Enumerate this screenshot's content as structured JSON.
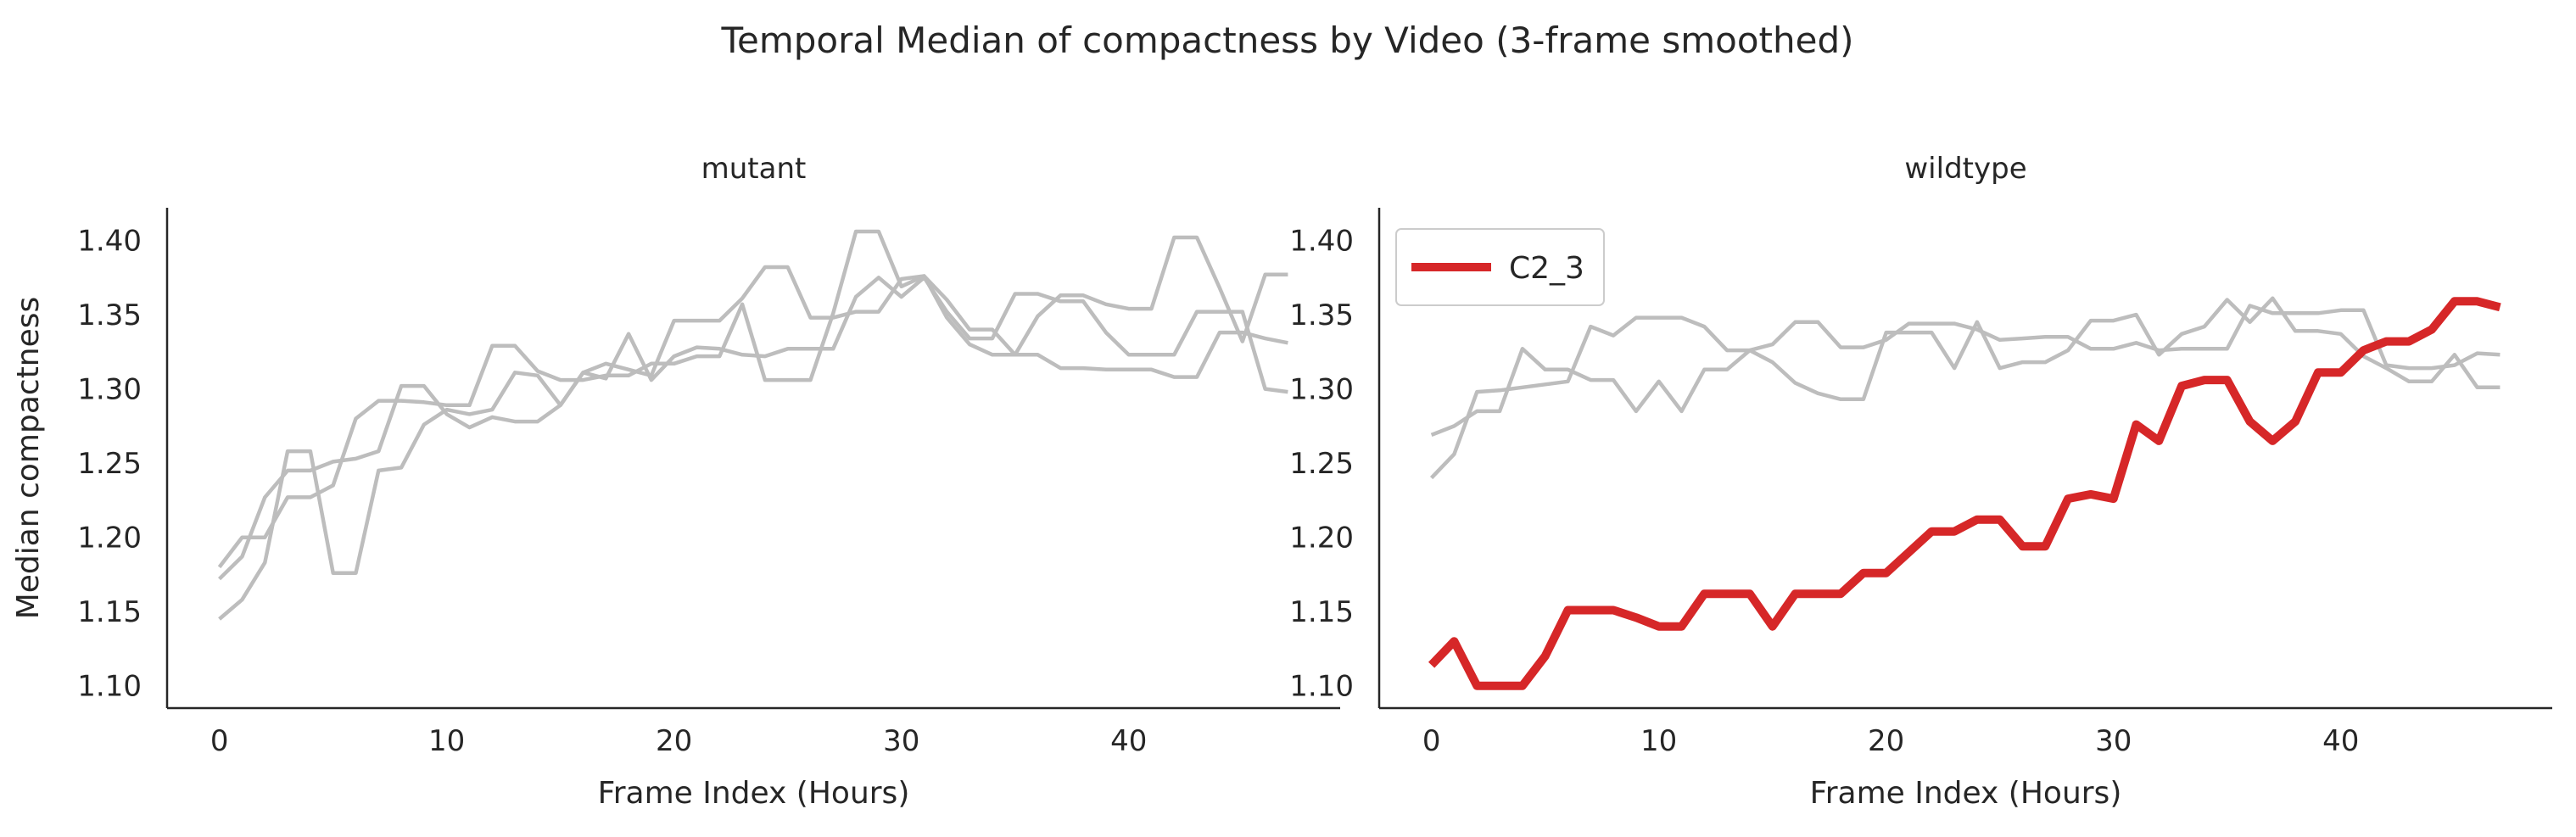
{
  "title": "Temporal Median of compactness by Video (3-frame smoothed)",
  "colors": {
    "background_line": "#bdbdbd",
    "highlight": "#d62728",
    "axis": "#262626"
  },
  "chart_data": [
    {
      "type": "line",
      "panel_title": "mutant",
      "xlabel": "Frame Index (Hours)",
      "ylabel": "Median compactness",
      "xlim": [
        -2.3,
        49.3
      ],
      "ylim": [
        1.085,
        1.422
      ],
      "xticks": [
        0,
        10,
        20,
        30,
        40
      ],
      "yticks": [
        1.1,
        1.15,
        1.2,
        1.25,
        1.3,
        1.35,
        1.4
      ],
      "grid": false,
      "series": [
        {
          "values": [
            1.145,
            1.158,
            1.183,
            1.258,
            1.258,
            1.176,
            1.176,
            1.245,
            1.247,
            1.276,
            1.286,
            1.283,
            1.286,
            1.311,
            1.309,
            1.289,
            1.311,
            1.307,
            1.337,
            1.306,
            1.322,
            1.328,
            1.327,
            1.323,
            1.322,
            1.327,
            1.327,
            1.327,
            1.362,
            1.375,
            1.362,
            1.375,
            1.352,
            1.334,
            1.334,
            1.364,
            1.364,
            1.359,
            1.359,
            1.338,
            1.323,
            1.323,
            1.323,
            1.352,
            1.352,
            1.352,
            1.3,
            1.298
          ]
        },
        {
          "values": [
            1.172,
            1.187,
            1.227,
            1.245,
            1.245,
            1.251,
            1.253,
            1.258,
            1.302,
            1.302,
            1.283,
            1.274,
            1.281,
            1.278,
            1.278,
            1.289,
            1.311,
            1.317,
            1.313,
            1.309,
            1.346,
            1.346,
            1.346,
            1.361,
            1.382,
            1.382,
            1.348,
            1.348,
            1.352,
            1.352,
            1.374,
            1.376,
            1.36,
            1.34,
            1.34,
            1.323,
            1.349,
            1.363,
            1.363,
            1.357,
            1.354,
            1.354,
            1.402,
            1.402,
            1.368,
            1.332,
            1.377,
            1.377
          ]
        },
        {
          "values": [
            1.18,
            1.2,
            1.2,
            1.227,
            1.227,
            1.235,
            1.28,
            1.292,
            1.292,
            1.291,
            1.289,
            1.289,
            1.329,
            1.329,
            1.312,
            1.306,
            1.306,
            1.309,
            1.309,
            1.317,
            1.317,
            1.322,
            1.322,
            1.357,
            1.306,
            1.306,
            1.306,
            1.351,
            1.406,
            1.406,
            1.369,
            1.376,
            1.348,
            1.33,
            1.323,
            1.323,
            1.323,
            1.314,
            1.314,
            1.313,
            1.313,
            1.313,
            1.308,
            1.308,
            1.338,
            1.338,
            1.334,
            1.331
          ]
        }
      ]
    },
    {
      "type": "line",
      "panel_title": "wildtype",
      "xlabel": "Frame Index (Hours)",
      "ylabel": "",
      "xlim": [
        -2.3,
        49.3
      ],
      "ylim": [
        1.085,
        1.422
      ],
      "xticks": [
        0,
        10,
        20,
        30,
        40
      ],
      "yticks": [
        1.1,
        1.15,
        1.2,
        1.25,
        1.3,
        1.35,
        1.4
      ],
      "grid": false,
      "legend": {
        "placement": "top-left",
        "entries": [
          {
            "label": "C2_3",
            "color": "#d62728"
          }
        ]
      },
      "series": [
        {
          "values": [
            1.24,
            1.256,
            1.298,
            1.299,
            1.301,
            1.303,
            1.305,
            1.342,
            1.336,
            1.348,
            1.348,
            1.348,
            1.342,
            1.326,
            1.326,
            1.33,
            1.345,
            1.345,
            1.328,
            1.328,
            1.333,
            1.344,
            1.344,
            1.344,
            1.34,
            1.333,
            1.334,
            1.335,
            1.335,
            1.327,
            1.327,
            1.331,
            1.326,
            1.327,
            1.327,
            1.327,
            1.356,
            1.351,
            1.351,
            1.351,
            1.353,
            1.353,
            1.316,
            1.314,
            1.314,
            1.316,
            1.324,
            1.323
          ]
        },
        {
          "values": [
            1.269,
            1.275,
            1.285,
            1.285,
            1.327,
            1.313,
            1.313,
            1.306,
            1.306,
            1.285,
            1.305,
            1.285,
            1.313,
            1.313,
            1.326,
            1.318,
            1.304,
            1.297,
            1.293,
            1.293,
            1.338,
            1.338,
            1.338,
            1.314,
            1.345,
            1.314,
            1.318,
            1.318,
            1.326,
            1.346,
            1.346,
            1.35,
            1.323,
            1.337,
            1.342,
            1.36,
            1.345,
            1.361,
            1.339,
            1.339,
            1.337,
            1.322,
            1.314,
            1.305,
            1.305,
            1.323,
            1.301,
            1.301
          ]
        },
        {
          "name": "C2_3",
          "highlight": true,
          "values": [
            1.114,
            1.13,
            1.1,
            1.1,
            1.1,
            1.12,
            1.151,
            1.151,
            1.151,
            1.146,
            1.14,
            1.14,
            1.162,
            1.162,
            1.162,
            1.14,
            1.162,
            1.162,
            1.162,
            1.176,
            1.176,
            1.19,
            1.204,
            1.204,
            1.212,
            1.212,
            1.194,
            1.194,
            1.226,
            1.229,
            1.226,
            1.276,
            1.265,
            1.302,
            1.306,
            1.306,
            1.278,
            1.265,
            1.278,
            1.311,
            1.311,
            1.326,
            1.332,
            1.332,
            1.34,
            1.359,
            1.359,
            1.355
          ]
        }
      ]
    }
  ]
}
